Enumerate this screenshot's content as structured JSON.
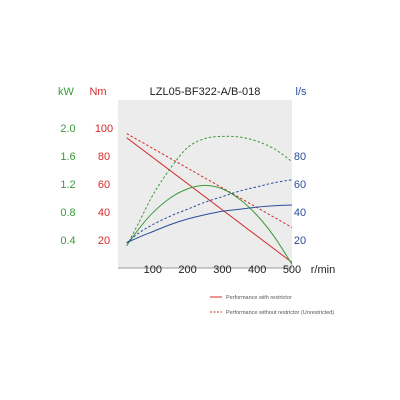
{
  "colors": {
    "kw": "#3a9a3a",
    "nm": "#d42a2a",
    "ls": "#2a4d9a",
    "text": "#222222",
    "plot_bg": "#ececec",
    "axis": "#999999"
  },
  "chart_data": {
    "type": "line",
    "title": "LZL05-BF322-A/B-018",
    "xlabel": "r/min",
    "xlim": [
      0,
      500
    ],
    "x_ticks": [
      100,
      200,
      300,
      400,
      500
    ],
    "axes": {
      "kw": {
        "label": "kW",
        "lim": [
          0,
          2.4
        ],
        "ticks": [
          "0.4",
          "0.8",
          "1.2",
          "1.6",
          "2.0"
        ],
        "tick_values": [
          0.4,
          0.8,
          1.2,
          1.6,
          2.0
        ]
      },
      "nm": {
        "label": "Nm",
        "lim": [
          0,
          120
        ],
        "ticks": [
          "20",
          "40",
          "60",
          "80",
          "100"
        ],
        "tick_values": [
          20,
          40,
          60,
          80,
          100
        ]
      },
      "ls": {
        "label": "l/s",
        "lim": [
          0,
          120
        ],
        "ticks": [
          "20",
          "40",
          "60",
          "80"
        ],
        "tick_values": [
          20,
          40,
          60,
          80
        ]
      }
    },
    "series": [
      {
        "axis": "nm",
        "style": "solid",
        "color": "#d42a2a",
        "x": [
          25,
          500
        ],
        "y": [
          93,
          4
        ]
      },
      {
        "axis": "nm",
        "style": "dashed",
        "color": "#d42a2a",
        "x": [
          25,
          500
        ],
        "y": [
          96,
          29
        ]
      },
      {
        "axis": "kw",
        "style": "solid",
        "color": "#3a9a3a",
        "x": [
          25,
          60,
          100,
          150,
          200,
          250,
          300,
          350,
          400,
          450,
          500
        ],
        "y": [
          0.32,
          0.56,
          0.79,
          1.0,
          1.13,
          1.18,
          1.13,
          0.98,
          0.75,
          0.44,
          0.05
        ]
      },
      {
        "axis": "kw",
        "style": "dashed",
        "color": "#3a9a3a",
        "x": [
          25,
          60,
          100,
          150,
          200,
          250,
          300,
          350,
          400,
          450,
          500
        ],
        "y": [
          0.32,
          0.65,
          1.04,
          1.42,
          1.72,
          1.85,
          1.88,
          1.87,
          1.81,
          1.7,
          1.52
        ]
      },
      {
        "axis": "ls",
        "style": "solid",
        "color": "#2a4d9a",
        "x": [
          25,
          60,
          100,
          150,
          200,
          250,
          300,
          350,
          400,
          450,
          500
        ],
        "y": [
          18,
          22,
          26,
          31,
          35,
          38,
          40.5,
          42,
          43.5,
          44.5,
          45
        ]
      },
      {
        "axis": "ls",
        "style": "dashed",
        "color": "#2a4d9a",
        "x": [
          25,
          60,
          100,
          150,
          200,
          250,
          300,
          350,
          400,
          450,
          500
        ],
        "y": [
          18,
          25,
          31,
          37,
          42,
          47,
          51,
          55,
          58,
          61,
          63
        ]
      }
    ],
    "legend": {
      "placement": "bottom-right",
      "entries": [
        {
          "label": "Performance with restrictor",
          "style": "solid",
          "color": "#d42a2a"
        },
        {
          "label": "Performance without restrictor (Unrestricted)",
          "style": "dashed",
          "color": "#d42a2a"
        }
      ]
    }
  }
}
